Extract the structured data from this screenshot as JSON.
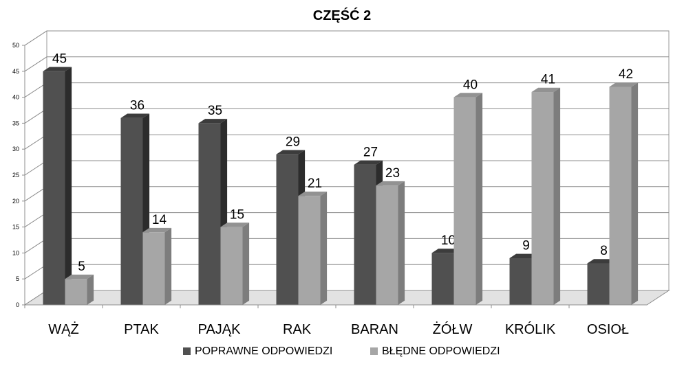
{
  "chart_data": {
    "type": "bar",
    "title": "CZĘŚĆ 2",
    "categories": [
      "WĄŻ",
      "PTAK",
      "PAJĄK",
      "RAK",
      "BARAN",
      "ŻÓŁW",
      "KRÓLIK",
      "OSIOŁ"
    ],
    "series": [
      {
        "name": "POPRAWNE ODPOWIEDZI",
        "values": [
          45,
          36,
          35,
          29,
          27,
          10,
          9,
          8
        ],
        "color": "#505050"
      },
      {
        "name": "BŁĘDNE ODPOWIEDZI",
        "values": [
          5,
          14,
          15,
          21,
          23,
          40,
          41,
          42
        ],
        "color": "#a6a6a6"
      }
    ],
    "ylim": [
      0,
      50
    ],
    "yticks": [
      "0",
      "5",
      "10",
      "15",
      "20",
      "25",
      "30",
      "35",
      "40",
      "45",
      "50"
    ],
    "grid": true,
    "style": "3d-column",
    "legend_position": "bottom"
  }
}
